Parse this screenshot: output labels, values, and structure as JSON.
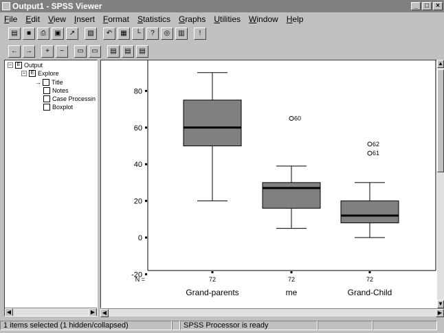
{
  "window": {
    "title": "Output1 - SPSS Viewer",
    "controls": [
      "_",
      "□",
      "×"
    ]
  },
  "menu": [
    "File",
    "Edit",
    "View",
    "Insert",
    "Format",
    "Statistics",
    "Graphs",
    "Utilities",
    "Window",
    "Help"
  ],
  "toolbar1": [
    {
      "name": "open-icon",
      "glyph": "▤"
    },
    {
      "name": "save-icon",
      "glyph": "■"
    },
    {
      "name": "print-icon",
      "glyph": "⎙"
    },
    {
      "name": "print-preview-icon",
      "glyph": "▣"
    },
    {
      "name": "export-icon",
      "glyph": "↗"
    },
    {
      "name": "recall-dialog-icon",
      "glyph": "▧"
    },
    {
      "name": "undo-icon",
      "glyph": "↶"
    },
    {
      "name": "goto-data-icon",
      "glyph": "▦"
    },
    {
      "name": "goto-chart-icon",
      "glyph": "└"
    },
    {
      "name": "variables-icon",
      "glyph": "?"
    },
    {
      "name": "find-icon",
      "glyph": "◎"
    },
    {
      "name": "designate-window-icon",
      "glyph": "▥"
    },
    {
      "name": "help-icon",
      "glyph": "!"
    }
  ],
  "toolbar2": [
    {
      "name": "promote-icon",
      "glyph": "←"
    },
    {
      "name": "demote-icon",
      "glyph": "→"
    },
    {
      "name": "expand-icon",
      "glyph": "+"
    },
    {
      "name": "collapse-icon",
      "glyph": "−"
    },
    {
      "name": "show-icon",
      "glyph": "▭"
    },
    {
      "name": "hide-icon",
      "glyph": "▭"
    },
    {
      "name": "insert-heading-icon",
      "glyph": "▤"
    },
    {
      "name": "insert-title-icon",
      "glyph": "▤"
    },
    {
      "name": "insert-text-icon",
      "glyph": "▤"
    }
  ],
  "outline": {
    "root": "Output",
    "explore": "Explore",
    "items": [
      "Title",
      "Notes",
      "Case Processin",
      "Boxplot"
    ]
  },
  "status": {
    "selection": "1 items selected (1 hidden/collapsed)",
    "processor": "SPSS Processor  is ready"
  },
  "chart_data": {
    "type": "boxplot",
    "categories": [
      "Grand-parents",
      "me",
      "Grand-Child"
    ],
    "n_label": "N =",
    "n": [
      "72",
      "72",
      "72"
    ],
    "yticks": [
      -20,
      0,
      20,
      40,
      60,
      80
    ],
    "ylim": [
      -20,
      96
    ],
    "boxes": [
      {
        "whisker_low": 20,
        "q1": 50,
        "median": 60,
        "q3": 75,
        "whisker_high": 90
      },
      {
        "whisker_low": 5,
        "q1": 16,
        "median": 27,
        "q3": 30,
        "whisker_high": 39
      },
      {
        "whisker_low": 0,
        "q1": 8,
        "median": 12,
        "q3": 20,
        "whisker_high": 30
      }
    ],
    "outliers": [
      {
        "category": 1,
        "y": 65,
        "label": "60"
      },
      {
        "category": 2,
        "y": 51,
        "label": "62"
      },
      {
        "category": 2,
        "y": 46,
        "label": "61"
      }
    ],
    "box_color": "#808080"
  }
}
